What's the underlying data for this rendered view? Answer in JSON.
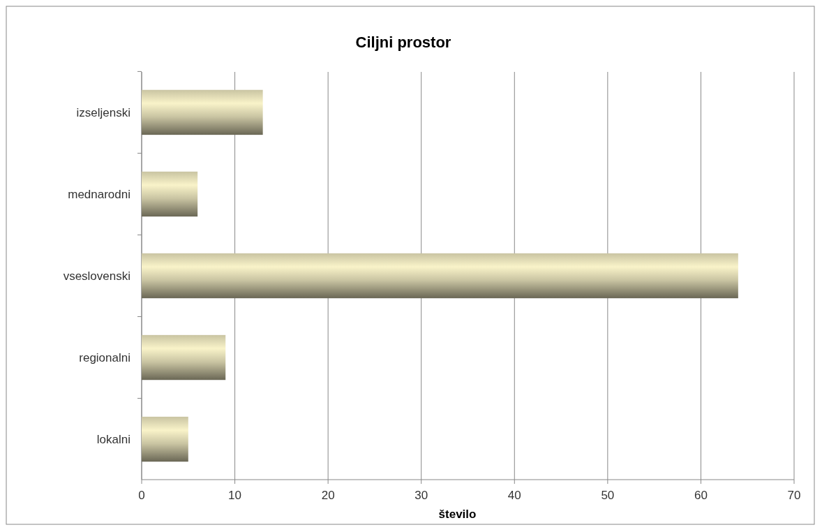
{
  "chart_data": {
    "type": "bar",
    "orientation": "horizontal",
    "title": "Ciljni prostor",
    "xlabel": "število",
    "categories": [
      "izseljenski",
      "mednarodni",
      "vseslovenski",
      "regionalni",
      "lokalni"
    ],
    "values": [
      13,
      6,
      64,
      9,
      5
    ],
    "color": "#c9c4a2",
    "xlim": [
      0,
      70
    ],
    "xticks": [
      0,
      10,
      20,
      30,
      40,
      50,
      60,
      70
    ],
    "grid": "x"
  }
}
